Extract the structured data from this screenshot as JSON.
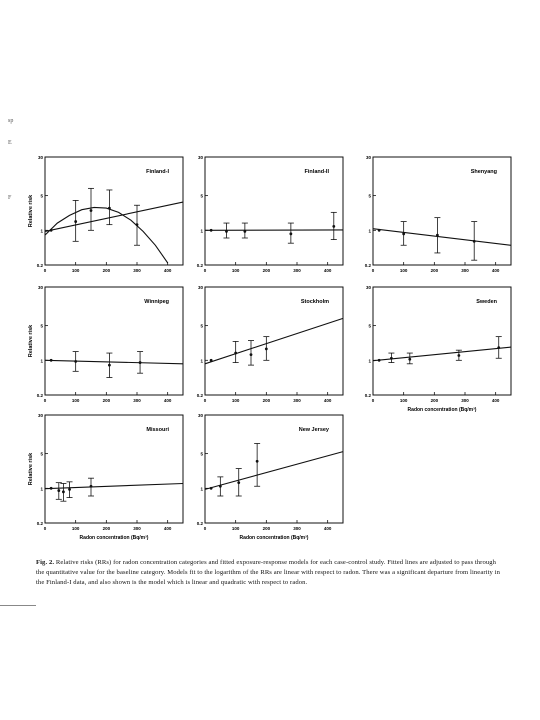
{
  "figure": {
    "caption_label": "Fig. 2.",
    "caption_text": "Relative risks (RRs) for radon concentration categories and fitted exposure-response models for each case-control study. Fitted lines are adjusted to pass through the quantitative value for the baseline category. Models fit to the logarithm of the RRs are linear with respect to radon. There was a significant departure from linearity in the Finland-I data, and also shown is the model which is linear and quadratic with respect to radon.",
    "margin_marks": [
      "sp",
      "E",
      "F"
    ]
  },
  "chart_data": [
    {
      "type": "scatter",
      "title": "Finland-I",
      "ylabel": "Relative risk",
      "xlabel": "",
      "y_log": true,
      "ylim": [
        0.2,
        30
      ],
      "xlim": [
        0,
        450
      ],
      "yticks": [
        "0.2",
        "1",
        "5",
        "30"
      ],
      "xticks": [
        "0",
        "100",
        "200",
        "300",
        "400"
      ],
      "points": [
        {
          "x": 20,
          "y": 1.0,
          "lo": 1.0,
          "hi": 1.0
        },
        {
          "x": 100,
          "y": 1.5,
          "lo": 0.6,
          "hi": 4.0
        },
        {
          "x": 150,
          "y": 2.5,
          "lo": 1.0,
          "hi": 7.0
        },
        {
          "x": 210,
          "y": 2.8,
          "lo": 1.3,
          "hi": 6.5
        },
        {
          "x": 300,
          "y": 1.3,
          "lo": 0.5,
          "hi": 3.2
        }
      ],
      "fit": {
        "kind": "linear",
        "x": [
          0,
          450
        ],
        "y": [
          0.95,
          3.7
        ]
      },
      "fit2": {
        "kind": "quadratic",
        "x": [
          0,
          40,
          80,
          120,
          160,
          200,
          240,
          280,
          320,
          360,
          400
        ],
        "y": [
          0.8,
          1.4,
          2.0,
          2.6,
          2.9,
          2.8,
          2.3,
          1.6,
          0.95,
          0.5,
          0.22
        ]
      }
    },
    {
      "type": "scatter",
      "title": "Finland-II",
      "ylabel": "",
      "xlabel": "",
      "y_log": true,
      "ylim": [
        0.2,
        30
      ],
      "xlim": [
        0,
        450
      ],
      "yticks": [
        "0.2",
        "1",
        "5",
        "30"
      ],
      "xticks": [
        "0",
        "100",
        "200",
        "300",
        "400"
      ],
      "points": [
        {
          "x": 20,
          "y": 1.0,
          "lo": 1.0,
          "hi": 1.0
        },
        {
          "x": 70,
          "y": 0.95,
          "lo": 0.7,
          "hi": 1.4
        },
        {
          "x": 130,
          "y": 0.95,
          "lo": 0.7,
          "hi": 1.4
        },
        {
          "x": 280,
          "y": 0.85,
          "lo": 0.55,
          "hi": 1.4
        },
        {
          "x": 420,
          "y": 1.2,
          "lo": 0.65,
          "hi": 2.3
        }
      ],
      "fit": {
        "kind": "linear",
        "x": [
          0,
          450
        ],
        "y": [
          1.0,
          1.02
        ]
      }
    },
    {
      "type": "scatter",
      "title": "Shenyang",
      "ylabel": "",
      "xlabel": "",
      "y_log": true,
      "ylim": [
        0.2,
        30
      ],
      "xlim": [
        0,
        450
      ],
      "yticks": [
        "0.2",
        "1",
        "5",
        "30"
      ],
      "xticks": [
        "0",
        "100",
        "200",
        "300",
        "400"
      ],
      "points": [
        {
          "x": 20,
          "y": 1.0,
          "lo": 1.0,
          "hi": 1.0
        },
        {
          "x": 100,
          "y": 0.85,
          "lo": 0.5,
          "hi": 1.5
        },
        {
          "x": 210,
          "y": 0.8,
          "lo": 0.35,
          "hi": 1.8
        },
        {
          "x": 330,
          "y": 0.6,
          "lo": 0.25,
          "hi": 1.5
        }
      ],
      "fit": {
        "kind": "linear",
        "x": [
          0,
          450
        ],
        "y": [
          1.08,
          0.5
        ]
      }
    },
    {
      "type": "scatter",
      "title": "Winnipeg",
      "ylabel": "Relative risk",
      "xlabel": "",
      "y_log": true,
      "ylim": [
        0.2,
        30
      ],
      "xlim": [
        0,
        450
      ],
      "yticks": [
        "0.2",
        "1",
        "5",
        "30"
      ],
      "xticks": [
        "0",
        "100",
        "200",
        "300",
        "400"
      ],
      "points": [
        {
          "x": 20,
          "y": 1.0,
          "lo": 1.0,
          "hi": 1.0
        },
        {
          "x": 100,
          "y": 0.95,
          "lo": 0.6,
          "hi": 1.5
        },
        {
          "x": 210,
          "y": 0.8,
          "lo": 0.45,
          "hi": 1.4
        },
        {
          "x": 310,
          "y": 0.9,
          "lo": 0.55,
          "hi": 1.5
        }
      ],
      "fit": {
        "kind": "linear",
        "x": [
          0,
          450
        ],
        "y": [
          1.0,
          0.85
        ]
      }
    },
    {
      "type": "scatter",
      "title": "Stockholm",
      "ylabel": "",
      "xlabel": "",
      "y_log": true,
      "ylim": [
        0.2,
        30
      ],
      "xlim": [
        0,
        450
      ],
      "yticks": [
        "0.2",
        "1",
        "5",
        "30"
      ],
      "xticks": [
        "0",
        "100",
        "200",
        "300",
        "400"
      ],
      "points": [
        {
          "x": 20,
          "y": 1.0,
          "lo": 1.0,
          "hi": 1.0
        },
        {
          "x": 100,
          "y": 1.4,
          "lo": 0.9,
          "hi": 2.4
        },
        {
          "x": 150,
          "y": 1.3,
          "lo": 0.8,
          "hi": 2.5
        },
        {
          "x": 200,
          "y": 1.7,
          "lo": 1.0,
          "hi": 3.0
        }
      ],
      "fit": {
        "kind": "linear",
        "x": [
          0,
          450
        ],
        "y": [
          0.85,
          7.0
        ]
      }
    },
    {
      "type": "scatter",
      "title": "Sweden",
      "ylabel": "",
      "xlabel": "Radon concentration (Bq/m³)",
      "y_log": true,
      "ylim": [
        0.2,
        30
      ],
      "xlim": [
        0,
        450
      ],
      "yticks": [
        "0.2",
        "1",
        "5",
        "30"
      ],
      "xticks": [
        "0",
        "100",
        "200",
        "300",
        "400"
      ],
      "points": [
        {
          "x": 20,
          "y": 1.0,
          "lo": 1.0,
          "hi": 1.0
        },
        {
          "x": 60,
          "y": 1.1,
          "lo": 0.9,
          "hi": 1.4
        },
        {
          "x": 120,
          "y": 1.05,
          "lo": 0.85,
          "hi": 1.4
        },
        {
          "x": 280,
          "y": 1.25,
          "lo": 1.0,
          "hi": 1.6
        },
        {
          "x": 410,
          "y": 1.8,
          "lo": 1.1,
          "hi": 3.0
        }
      ],
      "fit": {
        "kind": "linear",
        "x": [
          0,
          450
        ],
        "y": [
          0.98,
          1.85
        ]
      }
    },
    {
      "type": "scatter",
      "title": "Missouri",
      "ylabel": "Relative risk",
      "xlabel": "Radon concentration (Bq/m³)",
      "y_log": true,
      "ylim": [
        0.2,
        30
      ],
      "xlim": [
        0,
        450
      ],
      "yticks": [
        "0.2",
        "1",
        "5",
        "30"
      ],
      "xticks": [
        "0",
        "100",
        "200",
        "300",
        "400"
      ],
      "points": [
        {
          "x": 20,
          "y": 1.0,
          "lo": 1.0,
          "hi": 1.0
        },
        {
          "x": 45,
          "y": 0.9,
          "lo": 0.6,
          "hi": 1.3
        },
        {
          "x": 60,
          "y": 0.85,
          "lo": 0.55,
          "hi": 1.25
        },
        {
          "x": 80,
          "y": 0.95,
          "lo": 0.65,
          "hi": 1.35
        },
        {
          "x": 150,
          "y": 1.1,
          "lo": 0.7,
          "hi": 1.6
        }
      ],
      "fit": {
        "kind": "linear",
        "x": [
          0,
          450
        ],
        "y": [
          0.98,
          1.25
        ]
      }
    },
    {
      "type": "scatter",
      "title": "New Jersey",
      "ylabel": "",
      "xlabel": "Radon concentration (Bq/m³)",
      "y_log": true,
      "ylim": [
        0.2,
        30
      ],
      "xlim": [
        0,
        450
      ],
      "yticks": [
        "0.2",
        "1",
        "5",
        "30"
      ],
      "xticks": [
        "0",
        "100",
        "200",
        "300",
        "400"
      ],
      "points": [
        {
          "x": 20,
          "y": 1.0,
          "lo": 1.0,
          "hi": 1.0
        },
        {
          "x": 50,
          "y": 1.1,
          "lo": 0.7,
          "hi": 1.7
        },
        {
          "x": 110,
          "y": 1.3,
          "lo": 0.7,
          "hi": 2.5
        },
        {
          "x": 170,
          "y": 3.5,
          "lo": 1.1,
          "hi": 8.0
        }
      ],
      "fit": {
        "kind": "linear",
        "x": [
          0,
          450
        ],
        "y": [
          0.95,
          5.5
        ]
      }
    }
  ]
}
